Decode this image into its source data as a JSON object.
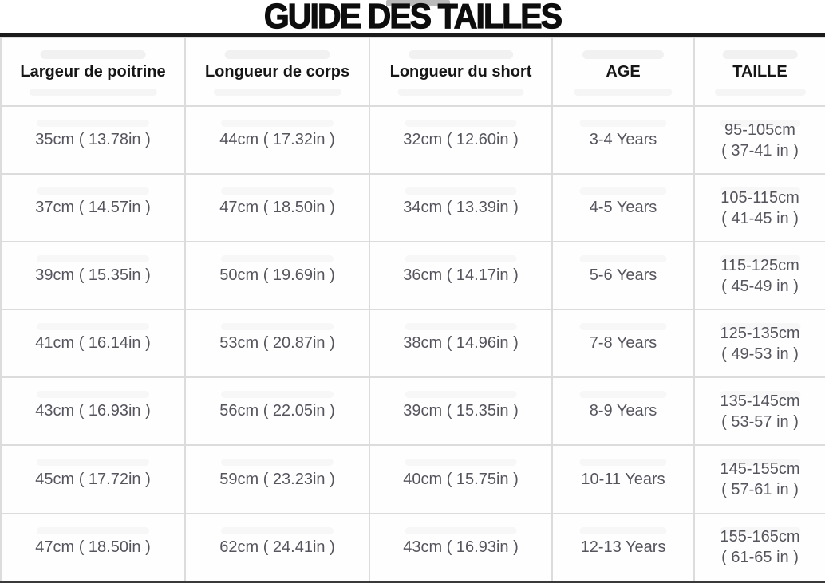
{
  "page": {
    "title": "GUIDE DES TAILLES"
  },
  "colors": {
    "title_text": "#0d0d0d",
    "header_text": "#161616",
    "cell_text": "#55555e",
    "grid_line": "#dcdcdc",
    "top_rule": "#1b1b1b",
    "bottom_rule": "#3a3a3a",
    "background": "#ffffff"
  },
  "table": {
    "columns": [
      {
        "label": "Largeur de poitrine"
      },
      {
        "label": "Longueur de corps"
      },
      {
        "label": "Longueur du short"
      },
      {
        "label": "AGE"
      },
      {
        "label": "TAILLE"
      }
    ],
    "rows": [
      {
        "chest_width": "35cm ( 13.78in )",
        "body_length": "44cm ( 17.32in )",
        "short_length": "32cm ( 12.60in )",
        "age": "3-4 Years",
        "taille_cm": "95-105cm",
        "taille_in": "( 37-41 in )"
      },
      {
        "chest_width": "37cm ( 14.57in )",
        "body_length": "47cm ( 18.50in )",
        "short_length": "34cm ( 13.39in )",
        "age": "4-5 Years",
        "taille_cm": "105-115cm",
        "taille_in": "( 41-45 in )"
      },
      {
        "chest_width": "39cm ( 15.35in )",
        "body_length": "50cm ( 19.69in )",
        "short_length": "36cm ( 14.17in )",
        "age": "5-6 Years",
        "taille_cm": "115-125cm",
        "taille_in": "( 45-49 in )"
      },
      {
        "chest_width": "41cm ( 16.14in )",
        "body_length": "53cm ( 20.87in )",
        "short_length": "38cm ( 14.96in )",
        "age": "7-8 Years",
        "taille_cm": "125-135cm",
        "taille_in": "( 49-53 in )"
      },
      {
        "chest_width": "43cm ( 16.93in )",
        "body_length": "56cm ( 22.05in )",
        "short_length": "39cm ( 15.35in )",
        "age": "8-9 Years",
        "taille_cm": "135-145cm",
        "taille_in": "( 53-57 in )"
      },
      {
        "chest_width": "45cm ( 17.72in )",
        "body_length": "59cm ( 23.23in )",
        "short_length": "40cm ( 15.75in )",
        "age": "10-11 Years",
        "taille_cm": "145-155cm",
        "taille_in": "( 57-61 in )"
      },
      {
        "chest_width": "47cm ( 18.50in )",
        "body_length": "62cm ( 24.41in )",
        "short_length": "43cm ( 16.93in )",
        "age": "12-13 Years",
        "taille_cm": "155-165cm",
        "taille_in": "( 61-65 in )"
      }
    ]
  }
}
